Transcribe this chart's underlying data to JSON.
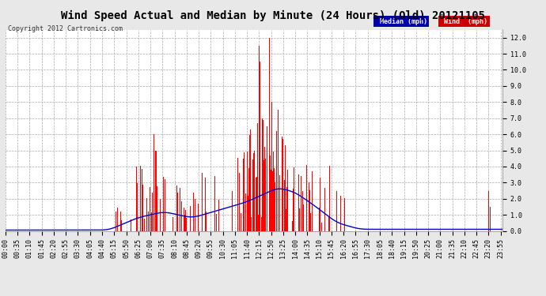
{
  "title": "Wind Speed Actual and Median by Minute (24 Hours) (Old) 20121105",
  "copyright": "Copyright 2012 Cartronics.com",
  "ylim": [
    0.0,
    12.5
  ],
  "yticks": [
    0.0,
    1.0,
    2.0,
    3.0,
    4.0,
    5.0,
    6.0,
    7.0,
    8.0,
    9.0,
    10.0,
    11.0,
    12.0
  ],
  "background_color": "#e8e8e8",
  "plot_bg_color": "#ffffff",
  "wind_color": "#ff0000",
  "median_color": "#0000cc",
  "legend_median_bg": "#0000aa",
  "legend_wind_bg": "#cc0000",
  "title_fontsize": 10,
  "tick_fontsize": 6,
  "total_minutes": 1440,
  "x_tick_interval": 35,
  "x_tick_labels": [
    "00:00",
    "00:35",
    "01:10",
    "01:45",
    "02:20",
    "02:55",
    "03:30",
    "04:05",
    "04:40",
    "05:15",
    "05:50",
    "06:25",
    "07:00",
    "07:35",
    "08:10",
    "08:45",
    "09:20",
    "09:55",
    "10:30",
    "11:05",
    "11:40",
    "12:15",
    "12:50",
    "13:25",
    "14:00",
    "14:35",
    "15:10",
    "15:45",
    "16:20",
    "16:55",
    "17:30",
    "18:05",
    "18:40",
    "19:15",
    "19:50",
    "20:25",
    "21:00",
    "21:35",
    "22:10",
    "22:45",
    "23:20",
    "23:55"
  ]
}
